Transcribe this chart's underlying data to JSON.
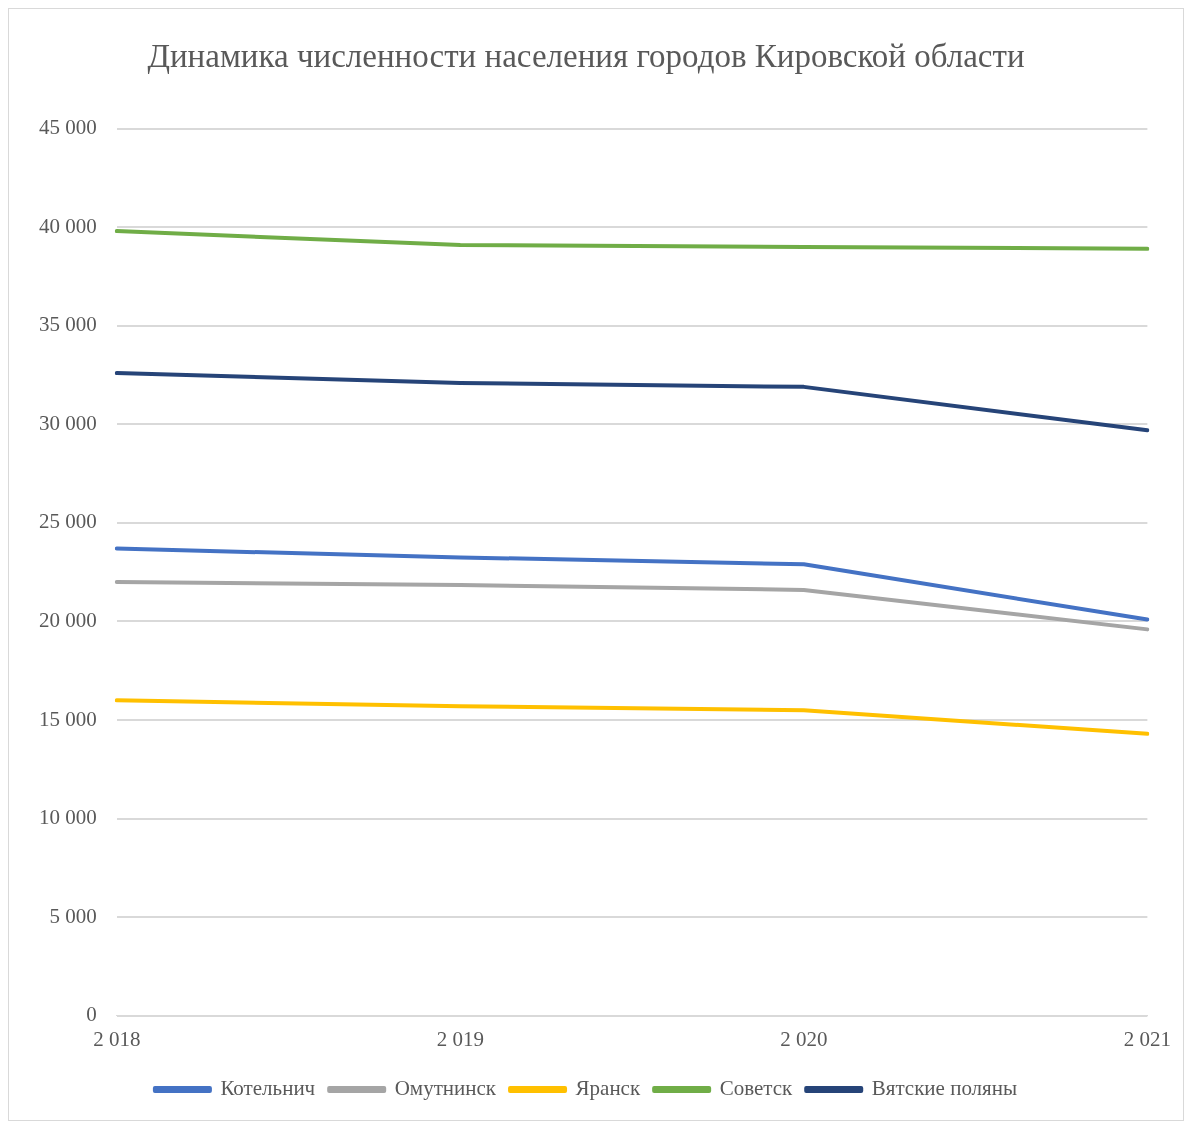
{
  "chart_data": {
    "type": "line",
    "title": "Динамика численности населения городов Кировской области",
    "categories": [
      "2 018",
      "2 019",
      "2 020",
      "2 021"
    ],
    "series": [
      {
        "name": "Котельнич",
        "color": "#4472c4",
        "values": [
          23700,
          23250,
          22900,
          20100
        ]
      },
      {
        "name": "Омутнинск",
        "color": "#a5a5a5",
        "values": [
          22000,
          21850,
          21600,
          19600
        ]
      },
      {
        "name": "Яранск",
        "color": "#ffc000",
        "values": [
          16000,
          15700,
          15500,
          14300
        ]
      },
      {
        "name": "Советск",
        "color": "#70ad47",
        "values": [
          39800,
          39100,
          39000,
          38900
        ]
      },
      {
        "name": "Вятские поляны",
        "color": "#264478",
        "values": [
          32600,
          32100,
          31900,
          29700
        ]
      }
    ],
    "ylim": [
      0,
      45000
    ],
    "yticks": [
      {
        "value": 0,
        "label": "0"
      },
      {
        "value": 5000,
        "label": "5 000"
      },
      {
        "value": 10000,
        "label": "10 000"
      },
      {
        "value": 15000,
        "label": "15 000"
      },
      {
        "value": 20000,
        "label": "20 000"
      },
      {
        "value": 25000,
        "label": "25 000"
      },
      {
        "value": 30000,
        "label": "30 000"
      },
      {
        "value": 35000,
        "label": "35 000"
      },
      {
        "value": 40000,
        "label": "40 000"
      },
      {
        "value": 45000,
        "label": "45 000"
      }
    ],
    "grid": "y",
    "legend": "bottom",
    "marker": "none",
    "line_style": "solid"
  }
}
